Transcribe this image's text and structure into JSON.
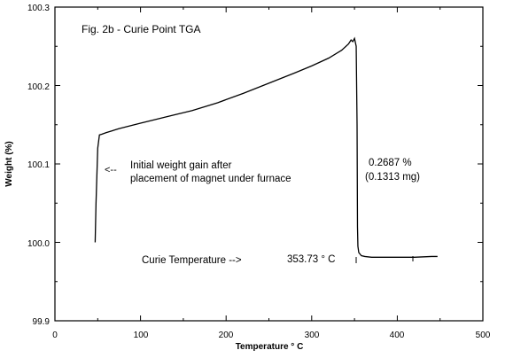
{
  "chart_data": {
    "type": "line",
    "title": "Fig. 2b - Curie Point TGA",
    "xlabel": "Temperature ° C",
    "ylabel": "Weight (%)",
    "xlim": [
      0,
      500
    ],
    "ylim": [
      99.9,
      100.3
    ],
    "x_ticks": [
      "0",
      "100",
      "200",
      "300",
      "400",
      "500"
    ],
    "y_ticks": [
      "99.9",
      "100.0",
      "100.1",
      "100.2",
      "100.3"
    ],
    "grid": false,
    "series": [
      {
        "x": [
          47,
          48,
          50,
          52,
          55,
          60,
          75,
          100,
          130,
          160,
          190,
          220,
          250,
          280,
          300,
          320,
          335,
          343,
          346,
          348,
          350,
          352,
          353,
          353.5,
          354,
          355,
          358,
          362,
          370,
          380,
          390,
          400,
          420,
          440,
          447
        ],
        "y": [
          100.0,
          100.05,
          100.12,
          100.137,
          100.138,
          100.14,
          100.145,
          100.152,
          100.16,
          100.168,
          100.178,
          100.19,
          100.203,
          100.216,
          100.225,
          100.235,
          100.245,
          100.253,
          100.258,
          100.256,
          100.26,
          100.25,
          100.15,
          100.02,
          99.995,
          99.987,
          99.983,
          99.982,
          99.981,
          99.981,
          99.981,
          99.981,
          99.981,
          99.982,
          99.982
        ]
      }
    ],
    "annotations": {
      "gain_line1": "Initial weight gain after",
      "gain_line2": "placement of magnet under furnace",
      "gain_arrow": "<--",
      "loss_pct": "0.2687 %",
      "loss_mg": "(0.1313 mg)",
      "curie_label": "Curie Temperature -->",
      "curie_value": "353.73 ° C"
    }
  }
}
